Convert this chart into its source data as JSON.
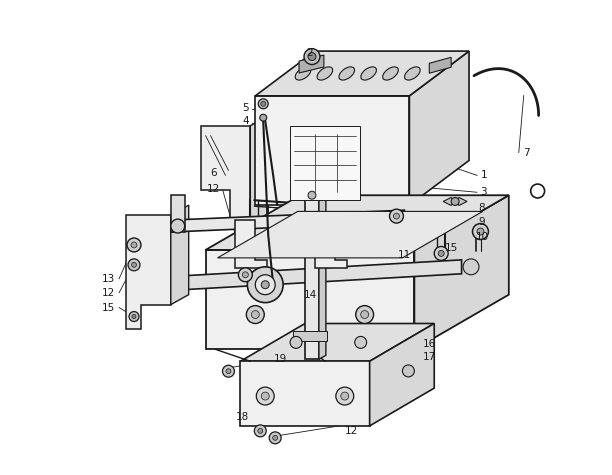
{
  "background_color": "#ffffff",
  "line_color": "#1a1a1a",
  "label_color": "#1a1a1a",
  "figsize": [
    6.12,
    4.75
  ],
  "dpi": 100
}
